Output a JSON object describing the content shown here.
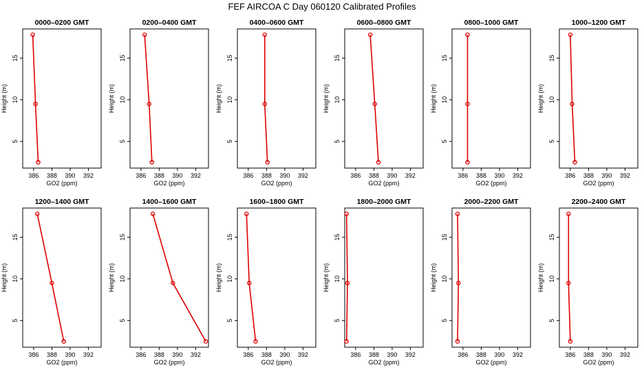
{
  "title": "FEF AIRCOA C  Day 060120  Calibrated Profiles",
  "chart_data": {
    "type": "line",
    "xlabel": "GO2 (ppm)",
    "ylabel": "Height (m)",
    "xlim": [
      384.8,
      393.4
    ],
    "ylim": [
      1.8,
      18.5
    ],
    "xticks": [
      386,
      388,
      390,
      392
    ],
    "yticks": [
      5,
      10,
      15
    ],
    "heights": [
      17.8,
      9.5,
      2.5
    ],
    "color": "#dd0000",
    "panels": [
      {
        "title": "0000–0200 GMT",
        "x": [
          385.9,
          386.2,
          386.5
        ]
      },
      {
        "title": "0200–0400 GMT",
        "x": [
          386.4,
          386.9,
          387.2
        ]
      },
      {
        "title": "0400–0600 GMT",
        "x": [
          387.8,
          387.8,
          388.1
        ]
      },
      {
        "title": "0600–0800 GMT",
        "x": [
          387.6,
          388.1,
          388.5
        ]
      },
      {
        "title": "0800–1000 GMT",
        "x": [
          386.5,
          386.5,
          386.5
        ]
      },
      {
        "title": "1000–1200 GMT",
        "x": [
          386.0,
          386.2,
          386.5
        ]
      },
      {
        "title": "1200–1400 GMT",
        "x": [
          386.4,
          388.0,
          389.3
        ]
      },
      {
        "title": "1400–1600 GMT",
        "x": [
          387.3,
          389.5,
          393.1
        ]
      },
      {
        "title": "1600–1800 GMT",
        "x": [
          385.8,
          386.1,
          386.8
        ]
      },
      {
        "title": "1800–2000 GMT",
        "x": [
          385.0,
          385.1,
          385.0
        ]
      },
      {
        "title": "2000–2200 GMT",
        "x": [
          385.4,
          385.5,
          385.4
        ]
      },
      {
        "title": "2200–2400 GMT",
        "x": [
          385.8,
          385.8,
          386.0
        ]
      }
    ]
  }
}
